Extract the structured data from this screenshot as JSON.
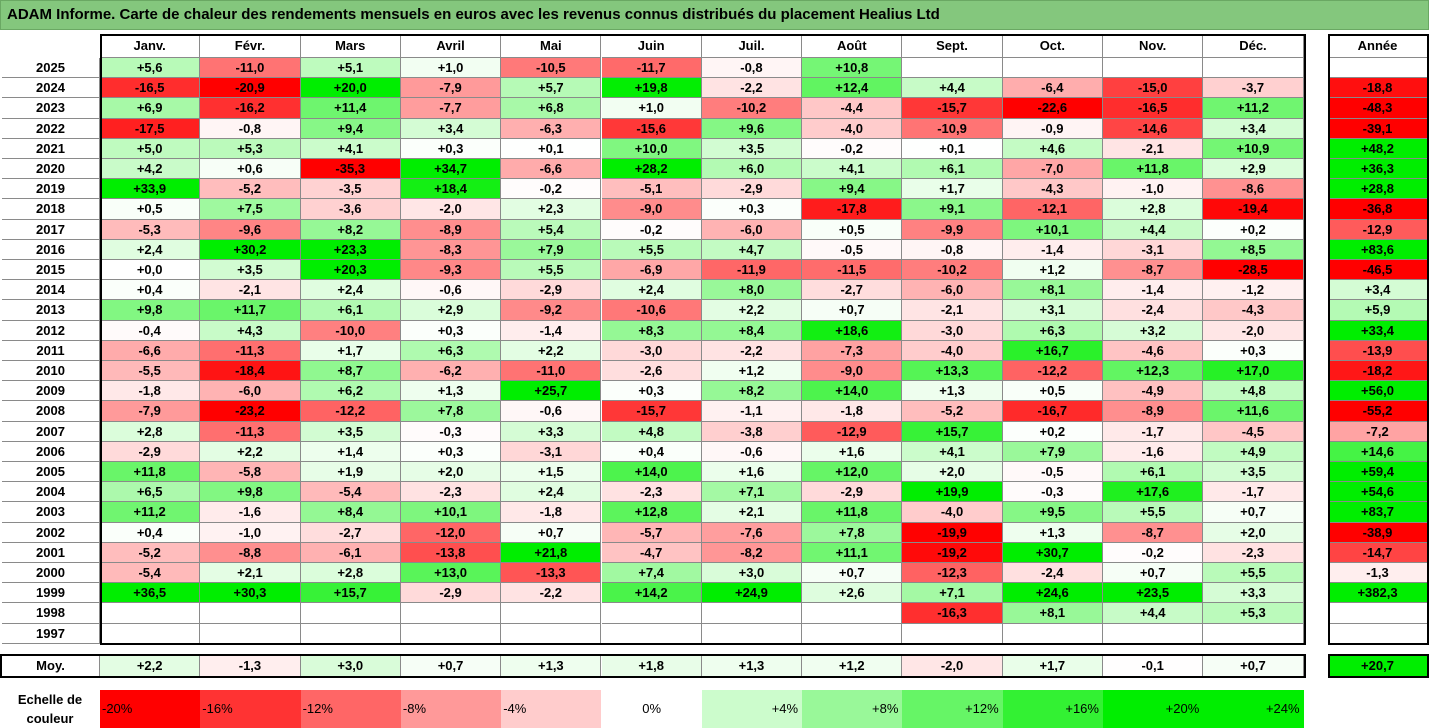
{
  "title": "ADAM Informe. Carte de chaleur des rendements mensuels en euros avec les revenus connus distribués du placement Healius Ltd",
  "chart_data": {
    "type": "heatmap",
    "months": [
      "Janv.",
      "Févr.",
      "Mars",
      "Avril",
      "Mai",
      "Juin",
      "Juil.",
      "Août",
      "Sept.",
      "Oct.",
      "Nov.",
      "Déc."
    ],
    "annual_label": "Année",
    "avg_label": "Moy.",
    "rows": [
      {
        "year": "2025",
        "values": [
          "+5,6",
          "-11,0",
          "+5,1",
          "+1,0",
          "-10,5",
          "-11,7",
          "-0,8",
          "+10,8",
          "",
          "",
          "",
          ""
        ],
        "annual": ""
      },
      {
        "year": "2024",
        "values": [
          "-16,5",
          "-20,9",
          "+20,0",
          "-7,9",
          "+5,7",
          "+19,8",
          "-2,2",
          "+12,4",
          "+4,4",
          "-6,4",
          "-15,0",
          "-3,7"
        ],
        "annual": "-18,8"
      },
      {
        "year": "2023",
        "values": [
          "+6,9",
          "-16,2",
          "+11,4",
          "-7,7",
          "+6,8",
          "+1,0",
          "-10,2",
          "-4,4",
          "-15,7",
          "-22,6",
          "-16,5",
          "+11,2"
        ],
        "annual": "-48,3"
      },
      {
        "year": "2022",
        "values": [
          "-17,5",
          "-0,8",
          "+9,4",
          "+3,4",
          "-6,3",
          "-15,6",
          "+9,6",
          "-4,0",
          "-10,9",
          "-0,9",
          "-14,6",
          "+3,4"
        ],
        "annual": "-39,1"
      },
      {
        "year": "2021",
        "values": [
          "+5,0",
          "+5,3",
          "+4,1",
          "+0,3",
          "+0,1",
          "+10,0",
          "+3,5",
          "-0,2",
          "+0,1",
          "+4,6",
          "-2,1",
          "+10,9"
        ],
        "annual": "+48,2"
      },
      {
        "year": "2020",
        "values": [
          "+4,2",
          "+0,6",
          "-35,3",
          "+34,7",
          "-6,6",
          "+28,2",
          "+6,0",
          "+4,1",
          "+6,1",
          "-7,0",
          "+11,8",
          "+2,9"
        ],
        "annual": "+36,3"
      },
      {
        "year": "2019",
        "values": [
          "+33,9",
          "-5,2",
          "-3,5",
          "+18,4",
          "-0,2",
          "-5,1",
          "-2,9",
          "+9,4",
          "+1,7",
          "-4,3",
          "-1,0",
          "-8,6"
        ],
        "annual": "+28,8"
      },
      {
        "year": "2018",
        "values": [
          "+0,5",
          "+7,5",
          "-3,6",
          "-2,0",
          "+2,3",
          "-9,0",
          "+0,3",
          "-17,8",
          "+9,1",
          "-12,1",
          "+2,8",
          "-19,4"
        ],
        "annual": "-36,8"
      },
      {
        "year": "2017",
        "values": [
          "-5,3",
          "-9,6",
          "+8,2",
          "-8,9",
          "+5,4",
          "-0,2",
          "-6,0",
          "+0,5",
          "-9,9",
          "+10,1",
          "+4,4",
          "+0,2"
        ],
        "annual": "-12,9"
      },
      {
        "year": "2016",
        "values": [
          "+2,4",
          "+30,2",
          "+23,3",
          "-8,3",
          "+7,9",
          "+5,5",
          "+4,7",
          "-0,5",
          "-0,8",
          "-1,4",
          "-3,1",
          "+8,5"
        ],
        "annual": "+83,6"
      },
      {
        "year": "2015",
        "values": [
          "+0,0",
          "+3,5",
          "+20,3",
          "-9,3",
          "+5,5",
          "-6,9",
          "-11,9",
          "-11,5",
          "-10,2",
          "+1,2",
          "-8,7",
          "-28,5"
        ],
        "annual": "-46,5"
      },
      {
        "year": "2014",
        "values": [
          "+0,4",
          "-2,1",
          "+2,4",
          "-0,6",
          "-2,9",
          "+2,4",
          "+8,0",
          "-2,7",
          "-6,0",
          "+8,1",
          "-1,4",
          "-1,2"
        ],
        "annual": "+3,4"
      },
      {
        "year": "2013",
        "values": [
          "+9,8",
          "+11,7",
          "+6,1",
          "+2,9",
          "-9,2",
          "-10,6",
          "+2,2",
          "+0,7",
          "-2,1",
          "+3,1",
          "-2,4",
          "-4,3"
        ],
        "annual": "+5,9"
      },
      {
        "year": "2012",
        "values": [
          "-0,4",
          "+4,3",
          "-10,0",
          "+0,3",
          "-1,4",
          "+8,3",
          "+8,4",
          "+18,6",
          "-3,0",
          "+6,3",
          "+3,2",
          "-2,0"
        ],
        "annual": "+33,4"
      },
      {
        "year": "2011",
        "values": [
          "-6,6",
          "-11,3",
          "+1,7",
          "+6,3",
          "+2,2",
          "-3,0",
          "-2,2",
          "-7,3",
          "-4,0",
          "+16,7",
          "-4,6",
          "+0,3"
        ],
        "annual": "-13,9"
      },
      {
        "year": "2010",
        "values": [
          "-5,5",
          "-18,4",
          "+8,7",
          "-6,2",
          "-11,0",
          "-2,6",
          "+1,2",
          "-9,0",
          "+13,3",
          "-12,2",
          "+12,3",
          "+17,0"
        ],
        "annual": "-18,2"
      },
      {
        "year": "2009",
        "values": [
          "-1,8",
          "-6,0",
          "+6,2",
          "+1,3",
          "+25,7",
          "+0,3",
          "+8,2",
          "+14,0",
          "+1,3",
          "+0,5",
          "-4,9",
          "+4,8"
        ],
        "annual": "+56,0"
      },
      {
        "year": "2008",
        "values": [
          "-7,9",
          "-23,2",
          "-12,2",
          "+7,8",
          "-0,6",
          "-15,7",
          "-1,1",
          "-1,8",
          "-5,2",
          "-16,7",
          "-8,9",
          "+11,6"
        ],
        "annual": "-55,2"
      },
      {
        "year": "2007",
        "values": [
          "+2,8",
          "-11,3",
          "+3,5",
          "-0,3",
          "+3,3",
          "+4,8",
          "-3,8",
          "-12,9",
          "+15,7",
          "+0,2",
          "-1,7",
          "-4,5"
        ],
        "annual": "-7,2"
      },
      {
        "year": "2006",
        "values": [
          "-2,9",
          "+2,2",
          "+1,4",
          "+0,3",
          "-3,1",
          "+0,4",
          "-0,6",
          "+1,6",
          "+4,1",
          "+7,9",
          "-1,6",
          "+4,9"
        ],
        "annual": "+14,6"
      },
      {
        "year": "2005",
        "values": [
          "+11,8",
          "-5,8",
          "+1,9",
          "+2,0",
          "+1,5",
          "+14,0",
          "+1,6",
          "+12,0",
          "+2,0",
          "-0,5",
          "+6,1",
          "+3,5"
        ],
        "annual": "+59,4"
      },
      {
        "year": "2004",
        "values": [
          "+6,5",
          "+9,8",
          "-5,4",
          "-2,3",
          "+2,4",
          "-2,3",
          "+7,1",
          "-2,9",
          "+19,9",
          "-0,3",
          "+17,6",
          "-1,7"
        ],
        "annual": "+54,6"
      },
      {
        "year": "2003",
        "values": [
          "+11,2",
          "-1,6",
          "+8,4",
          "+10,1",
          "-1,8",
          "+12,8",
          "+2,1",
          "+11,8",
          "-4,0",
          "+9,5",
          "+5,5",
          "+0,7"
        ],
        "annual": "+83,7"
      },
      {
        "year": "2002",
        "values": [
          "+0,4",
          "-1,0",
          "-2,7",
          "-12,0",
          "+0,7",
          "-5,7",
          "-7,6",
          "+7,8",
          "-19,9",
          "+1,3",
          "-8,7",
          "+2,0"
        ],
        "annual": "-38,9"
      },
      {
        "year": "2001",
        "values": [
          "-5,2",
          "-8,8",
          "-6,1",
          "-13,8",
          "+21,8",
          "-4,7",
          "-8,2",
          "+11,1",
          "-19,2",
          "+30,7",
          "-0,2",
          "-2,3"
        ],
        "annual": "-14,7"
      },
      {
        "year": "2000",
        "values": [
          "-5,4",
          "+2,1",
          "+2,8",
          "+13,0",
          "-13,3",
          "+7,4",
          "+3,0",
          "+0,7",
          "-12,3",
          "-2,4",
          "+0,7",
          "+5,5"
        ],
        "annual": "-1,3"
      },
      {
        "year": "1999",
        "values": [
          "+36,5",
          "+30,3",
          "+15,7",
          "-2,9",
          "-2,2",
          "+14,2",
          "+24,9",
          "+2,6",
          "+7,1",
          "+24,6",
          "+23,5",
          "+3,3"
        ],
        "annual": "+382,3"
      },
      {
        "year": "1998",
        "values": [
          "",
          "",
          "",
          "",
          "",
          "",
          "",
          "",
          "-16,3",
          "+8,1",
          "+4,4",
          "+5,3"
        ],
        "annual": ""
      },
      {
        "year": "1997",
        "values": [
          "",
          "",
          "",
          "",
          "",
          "",
          "",
          "",
          "",
          "",
          "",
          ""
        ],
        "annual": ""
      }
    ],
    "averages": [
      "+2,2",
      "-1,3",
      "+3,0",
      "+0,7",
      "+1,3",
      "+1,8",
      "+1,3",
      "+1,2",
      "-2,0",
      "+1,7",
      "-0,1",
      "+0,7"
    ],
    "annual_average": "+20,7",
    "colors": {
      "negative": "#ff0000",
      "neutral": "#ffffff",
      "positive": "#00ee00"
    },
    "scale_label": "Echelle de couleur",
    "scale_values": [
      -20,
      -16,
      -12,
      -8,
      -4,
      0,
      4,
      8,
      12,
      16,
      20,
      24
    ],
    "scale_labels": [
      "-20%",
      "-16%",
      "-12%",
      "-8%",
      "-4%",
      "0%",
      "+4%",
      "+8%",
      "+12%",
      "+16%",
      "+20%",
      "+24%"
    ]
  }
}
